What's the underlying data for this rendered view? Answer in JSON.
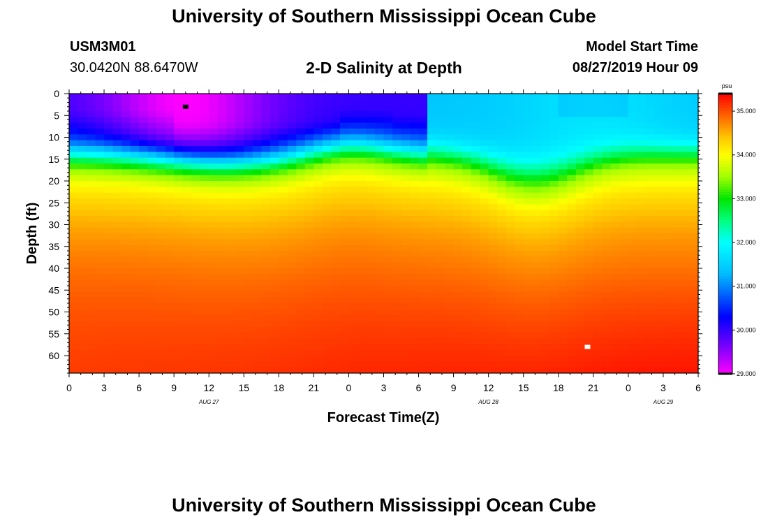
{
  "page_title_top": "University of Southern Mississippi Ocean Cube",
  "page_title_bottom": "University of Southern Mississippi Ocean Cube",
  "station": {
    "id": "USM3M01",
    "coords": "30.0420N 88.6470W"
  },
  "model_start": {
    "label": "Model Start Time",
    "value": "08/27/2019 Hour 09"
  },
  "colors": {
    "min": "#ff00ff",
    "low": "#0000ff",
    "mid": "#00ffff",
    "green": "#00e000",
    "yellow": "#ffff00",
    "max": "#ff0000"
  },
  "chart_data": {
    "type": "heatmap",
    "title": "2-D Salinity at Depth",
    "xlabel": "Forecast Time(Z)",
    "ylabel": "Depth (ft)",
    "x_range": [
      0,
      54
    ],
    "y_range": [
      0,
      64
    ],
    "x_ticks": [
      {
        "value": 0,
        "label": "0"
      },
      {
        "value": 3,
        "label": "3"
      },
      {
        "value": 6,
        "label": "6"
      },
      {
        "value": 9,
        "label": "9"
      },
      {
        "value": 12,
        "label": "12"
      },
      {
        "value": 15,
        "label": "15"
      },
      {
        "value": 18,
        "label": "18"
      },
      {
        "value": 21,
        "label": "21"
      },
      {
        "value": 24,
        "label": "0"
      },
      {
        "value": 27,
        "label": "3"
      },
      {
        "value": 30,
        "label": "6"
      },
      {
        "value": 33,
        "label": "9"
      },
      {
        "value": 36,
        "label": "12"
      },
      {
        "value": 39,
        "label": "15"
      },
      {
        "value": 42,
        "label": "18"
      },
      {
        "value": 45,
        "label": "21"
      },
      {
        "value": 48,
        "label": "0"
      },
      {
        "value": 51,
        "label": "3"
      },
      {
        "value": 54,
        "label": "6"
      }
    ],
    "date_labels": [
      {
        "value": 12,
        "label": "AUG 27"
      },
      {
        "value": 36,
        "label": "AUG 28"
      },
      {
        "value": 51,
        "label": "AUG 29"
      }
    ],
    "y_ticks": [
      0,
      5,
      10,
      15,
      20,
      25,
      30,
      35,
      40,
      45,
      50,
      55,
      60
    ],
    "colorbar": {
      "unit": "psu",
      "range": [
        29.0,
        35.4
      ],
      "ticks": [
        {
          "value": 29.0,
          "label": "29.000"
        },
        {
          "value": 30.0,
          "label": "30.000"
        },
        {
          "value": 31.0,
          "label": "31.000"
        },
        {
          "value": 32.0,
          "label": "32.000"
        },
        {
          "value": 33.0,
          "label": "33.000"
        },
        {
          "value": 34.0,
          "label": "34.000"
        },
        {
          "value": 35.0,
          "label": "35.000"
        }
      ]
    },
    "markers": [
      {
        "name": "min-marker",
        "x": 10,
        "y": 3,
        "color": "#000000"
      },
      {
        "name": "max-marker",
        "x": 44.5,
        "y": 58,
        "color": "#ffffff"
      }
    ]
  }
}
